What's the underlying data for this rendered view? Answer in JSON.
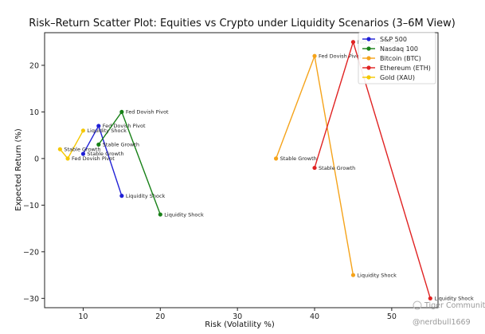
{
  "chart_data": {
    "type": "scatter",
    "title": "Risk–Return Scatter Plot: Equities vs Crypto under Liquidity Scenarios (3–6M View)",
    "xlabel": "Risk (Volatility %)",
    "ylabel": "Expected Return (%)",
    "xlim": [
      5,
      56
    ],
    "ylim": [
      -32,
      27
    ],
    "xticks": [
      10,
      20,
      30,
      40,
      50
    ],
    "yticks": [
      -30,
      -20,
      -10,
      0,
      10,
      20
    ],
    "grid": false,
    "legend_position": "top-right",
    "series": [
      {
        "name": "S&P 500",
        "color": "#1f1fd6",
        "points": [
          {
            "x": 10,
            "y": 1,
            "label": "Stable Growth"
          },
          {
            "x": 12,
            "y": 7,
            "label": "Fed Dovish Pivot"
          },
          {
            "x": 15,
            "y": -8,
            "label": "Liquidity Shock"
          }
        ]
      },
      {
        "name": "Nasdaq 100",
        "color": "#178017",
        "points": [
          {
            "x": 12,
            "y": 3,
            "label": "Stable Growth"
          },
          {
            "x": 15,
            "y": 10,
            "label": "Fed Dovish Pivot"
          },
          {
            "x": 20,
            "y": -12,
            "label": "Liquidity Shock"
          }
        ]
      },
      {
        "name": "Bitcoin (BTC)",
        "color": "#f5a31a",
        "points": [
          {
            "x": 35,
            "y": 0,
            "label": "Stable Growth"
          },
          {
            "x": 40,
            "y": 22,
            "label": "Fed Dovish Pivot"
          },
          {
            "x": 45,
            "y": -25,
            "label": "Liquidity Shock"
          }
        ]
      },
      {
        "name": "Ethereum (ETH)",
        "color": "#e02222",
        "points": [
          {
            "x": 40,
            "y": -2,
            "label": "Stable Growth"
          },
          {
            "x": 45,
            "y": 25,
            "label": "Fed Dovish Pivot"
          },
          {
            "x": 55,
            "y": -30,
            "label": "Liquidity Shock"
          }
        ]
      },
      {
        "name": "Gold (XAU)",
        "color": "#f5c800",
        "points": [
          {
            "x": 7,
            "y": 2,
            "label": "Stable Growth"
          },
          {
            "x": 8,
            "y": 0,
            "label": "Fed Dovish Pivot"
          },
          {
            "x": 10,
            "y": 6,
            "label": "Liquidity Shock"
          }
        ]
      }
    ]
  },
  "watermark": {
    "brand": "Tiger Community",
    "handle": "@nerdbull1669"
  }
}
